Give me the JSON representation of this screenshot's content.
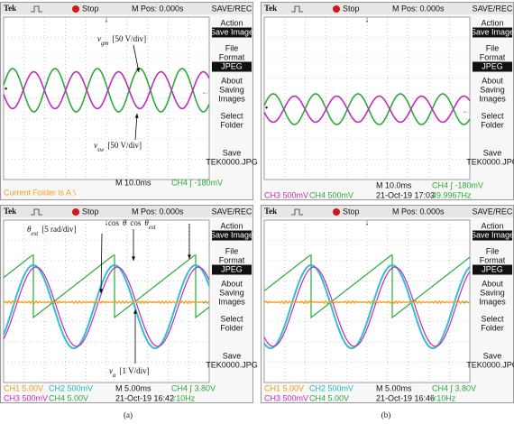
{
  "panels": [
    {
      "brand": "Tek",
      "state": "Stop",
      "position": "M Pos: 0.000s",
      "menu_title": "SAVE/REC",
      "menu": [
        {
          "lines": [
            "Action"
          ],
          "box": "Save Image"
        },
        {
          "lines": [
            "File",
            "Format"
          ],
          "box": "JPEG"
        },
        {
          "lines": [
            "About",
            "Saving",
            "Images"
          ]
        },
        {
          "lines": [
            "Select",
            "Folder"
          ]
        },
        {
          "lines": [
            "Save",
            "TEK0000.JPG"
          ]
        }
      ],
      "status": {
        "timebase": "M 10.0ms",
        "trigger": "CH4 ∫ -180mV",
        "folder": "Current Folder is A:\\"
      },
      "annotations": [
        [
          {
            "text": "v",
            "italic": true
          },
          {
            "text": "gm",
            "sub": true,
            "italic": true
          },
          {
            "text": "[50 V/div]"
          }
        ],
        [
          {
            "text": "v",
            "italic": true
          },
          {
            "text": "sw",
            "sub": true,
            "italic": true
          },
          {
            "text": "[50 V/div]"
          }
        ]
      ]
    },
    {
      "brand": "Tek",
      "state": "Stop",
      "position": "M Pos: 0.000s",
      "menu_title": "SAVE/REC",
      "menu": [
        {
          "lines": [
            "Action"
          ],
          "box": "Save Image"
        },
        {
          "lines": [
            "File",
            "Format"
          ],
          "box": "JPEG"
        },
        {
          "lines": [
            "About",
            "Saving",
            "Images"
          ]
        },
        {
          "lines": [
            "Select",
            "Folder"
          ]
        },
        {
          "lines": [
            "Save",
            "TEK0000.JPG"
          ]
        }
      ],
      "status": {
        "timebase": "M 10.0ms",
        "trigger": "CH4 ∫ -180mV",
        "channels": [
          "CH3 500mV",
          "CH4 500mV"
        ],
        "date": "21-Oct-19 17:03",
        "frequency": "49.9967Hz"
      },
      "annotations": []
    },
    {
      "brand": "Tek",
      "state": "Stop",
      "position": "M Pos: 0.000s",
      "menu_title": "SAVE/REC",
      "menu": [
        {
          "lines": [
            "Action"
          ],
          "box": "Save Image"
        },
        {
          "lines": [
            "File",
            "Format"
          ],
          "box": "JPEG"
        },
        {
          "lines": [
            "About",
            "Saving",
            "Images"
          ]
        },
        {
          "lines": [
            "Select",
            "Folder"
          ]
        },
        {
          "lines": [
            "Save",
            "TEK0000.JPG"
          ]
        }
      ],
      "status": {
        "timebase": "M 5.00ms",
        "trigger": "CH4 ∫ 3.80V",
        "channels": [
          "CH1 5.00V",
          "CH2 500mV",
          "CH3 500mV",
          "CH4 5.00V"
        ],
        "date": "21-Oct-19 16:42",
        "frequency": "<10Hz"
      },
      "annotations": [
        [
          {
            "text": "θ",
            "italic": true
          },
          {
            "text": "est",
            "sub": true,
            "italic": true
          },
          {
            "text": "[5 rad/div]"
          }
        ],
        [
          {
            "text": "cos"
          },
          {
            "text": "θ",
            "italic": true
          },
          {
            "text": "cos"
          },
          {
            "text": "θ",
            "italic": true
          },
          {
            "text": "est",
            "sub": true,
            "italic": true
          }
        ],
        [
          {
            "text": "v",
            "italic": true
          },
          {
            "text": "a",
            "sub": true,
            "italic": true
          },
          {
            "text": "[1 V/div]"
          }
        ]
      ]
    },
    {
      "brand": "Tek",
      "state": "Stop",
      "position": "M Pos: 0.000s",
      "menu_title": "SAVE/REC",
      "menu": [
        {
          "lines": [
            "Action"
          ],
          "box": "Save Image"
        },
        {
          "lines": [
            "File",
            "Format"
          ],
          "box": "JPEG"
        },
        {
          "lines": [
            "About",
            "Saving",
            "Images"
          ]
        },
        {
          "lines": [
            "Select",
            "Folder"
          ]
        },
        {
          "lines": [
            "Save",
            "TEK0000.JPG"
          ]
        }
      ],
      "status": {
        "timebase": "M 5.00ms",
        "trigger": "CH4 ∫ 3.80V",
        "channels": [
          "CH1 5.00V",
          "CH2 500mV",
          "CH3 500mV",
          "CH4 5.00V"
        ],
        "date": "21-Oct-19 16:46",
        "frequency": "<10Hz"
      },
      "annotations": []
    }
  ],
  "captions": [
    "(a)",
    "(b)"
  ]
}
